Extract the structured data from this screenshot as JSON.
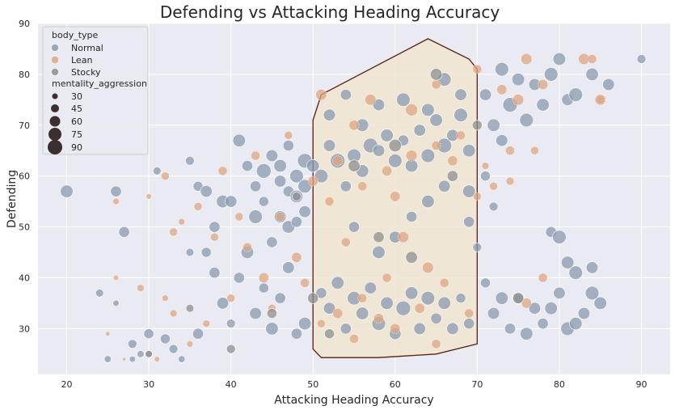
{
  "chart_data": {
    "type": "scatter",
    "title": "Defending vs Attacking Heading Accuracy",
    "xlabel": "Attacking Heading Accuracy",
    "ylabel": "Defending",
    "xlim": [
      16.5,
      93.5
    ],
    "ylim": [
      21,
      90
    ],
    "xticks": [
      "20",
      "30",
      "40",
      "50",
      "60",
      "70",
      "80",
      "90"
    ],
    "yticks": [
      "30",
      "40",
      "50",
      "60",
      "70",
      "80",
      "90"
    ],
    "grid": true,
    "legend_position": "top-left",
    "legend": {
      "hue_title": "body_type",
      "hue_entries": [
        {
          "label": "Normal",
          "color": "#8a9bb0"
        },
        {
          "label": "Lean",
          "color": "#dea680"
        },
        {
          "label": "Stocky",
          "color": "#8f8f8f"
        }
      ],
      "size_title": "mentality_aggression",
      "size_entries": [
        "30",
        "45",
        "60",
        "75",
        "90"
      ]
    },
    "colors": {
      "background": "#eaeaf2",
      "grid": "#ffffff",
      "hull_fill": "#f1e5d0",
      "hull_stroke": "#5a1e12"
    },
    "hull": [
      [
        50,
        71
      ],
      [
        51,
        76
      ],
      [
        64,
        87
      ],
      [
        69,
        83
      ],
      [
        70,
        81
      ],
      [
        70,
        27
      ],
      [
        65,
        25
      ],
      [
        58,
        24.3
      ],
      [
        51,
        24.3
      ],
      [
        50,
        26
      ]
    ],
    "series": [
      {
        "name": "Normal",
        "points": [
          [
            20,
            57,
            80
          ],
          [
            24,
            37,
            55
          ],
          [
            26,
            57,
            70
          ],
          [
            26,
            35,
            45
          ],
          [
            27,
            49,
            70
          ],
          [
            25,
            24,
            50
          ],
          [
            28,
            27,
            60
          ],
          [
            28,
            24,
            45
          ],
          [
            29,
            25,
            50
          ],
          [
            30,
            29,
            65
          ],
          [
            30,
            25,
            55
          ],
          [
            31,
            61,
            55
          ],
          [
            32,
            28,
            65
          ],
          [
            33,
            26,
            60
          ],
          [
            34,
            24,
            50
          ],
          [
            35,
            63,
            60
          ],
          [
            35,
            45,
            55
          ],
          [
            36,
            58,
            65
          ],
          [
            36,
            29,
            70
          ],
          [
            37,
            57,
            75
          ],
          [
            38,
            50,
            70
          ],
          [
            39,
            55,
            80
          ],
          [
            40,
            55,
            75
          ],
          [
            41,
            67,
            80
          ],
          [
            42,
            62,
            70
          ],
          [
            43,
            52,
            85
          ],
          [
            44,
            61,
            90
          ],
          [
            45,
            64,
            75
          ],
          [
            46,
            62,
            80
          ],
          [
            47,
            66,
            70
          ],
          [
            48,
            60,
            85
          ],
          [
            49,
            63,
            90
          ],
          [
            37,
            45,
            65
          ],
          [
            38,
            41,
            70
          ],
          [
            39,
            35,
            75
          ],
          [
            40,
            31,
            60
          ],
          [
            41,
            40,
            70
          ],
          [
            42,
            45,
            80
          ],
          [
            43,
            33,
            75
          ],
          [
            44,
            38,
            65
          ],
          [
            45,
            30,
            80
          ],
          [
            46,
            36,
            70
          ],
          [
            47,
            42,
            75
          ],
          [
            48,
            29,
            70
          ],
          [
            49,
            31,
            80
          ],
          [
            43,
            58,
            70
          ],
          [
            44,
            55,
            65
          ],
          [
            46,
            59,
            75
          ],
          [
            47,
            57,
            70
          ],
          [
            48,
            56,
            80
          ],
          [
            49,
            58,
            85
          ],
          [
            45,
            47,
            70
          ],
          [
            46,
            52,
            75
          ],
          [
            47,
            50,
            80
          ],
          [
            48,
            51,
            70
          ],
          [
            49,
            53,
            75
          ],
          [
            50,
            62,
            80
          ],
          [
            51,
            60,
            85
          ],
          [
            52,
            66,
            75
          ],
          [
            53,
            63,
            90
          ],
          [
            54,
            58,
            70
          ],
          [
            55,
            64,
            85
          ],
          [
            56,
            61,
            80
          ],
          [
            57,
            66,
            90
          ],
          [
            58,
            65,
            75
          ],
          [
            59,
            68,
            80
          ],
          [
            60,
            63,
            85
          ],
          [
            61,
            67,
            70
          ],
          [
            62,
            62,
            80
          ],
          [
            63,
            69,
            75
          ],
          [
            64,
            64,
            85
          ],
          [
            65,
            71,
            80
          ],
          [
            66,
            66,
            90
          ],
          [
            67,
            68,
            75
          ],
          [
            68,
            72,
            85
          ],
          [
            69,
            65,
            80
          ],
          [
            52,
            72,
            75
          ],
          [
            54,
            76,
            70
          ],
          [
            56,
            70,
            80
          ],
          [
            58,
            74,
            75
          ],
          [
            61,
            75,
            85
          ],
          [
            64,
            73,
            80
          ],
          [
            66,
            79,
            85
          ],
          [
            68,
            76,
            75
          ],
          [
            51,
            37,
            70
          ],
          [
            52,
            34,
            75
          ],
          [
            53,
            39,
            80
          ],
          [
            54,
            30,
            70
          ],
          [
            55,
            36,
            85
          ],
          [
            56,
            33,
            80
          ],
          [
            57,
            38,
            75
          ],
          [
            58,
            31,
            85
          ],
          [
            59,
            35,
            80
          ],
          [
            60,
            29,
            75
          ],
          [
            61,
            34,
            90
          ],
          [
            62,
            37,
            80
          ],
          [
            63,
            30,
            75
          ],
          [
            64,
            36,
            85
          ],
          [
            65,
            32,
            70
          ],
          [
            66,
            35,
            80
          ],
          [
            67,
            30,
            75
          ],
          [
            68,
            36,
            65
          ],
          [
            69,
            31,
            70
          ],
          [
            55,
            50,
            70
          ],
          [
            58,
            45,
            80
          ],
          [
            60,
            48,
            75
          ],
          [
            62,
            52,
            70
          ],
          [
            64,
            55,
            80
          ],
          [
            66,
            58,
            75
          ],
          [
            69,
            51,
            70
          ],
          [
            69,
            57,
            80
          ],
          [
            71,
            76,
            75
          ],
          [
            72,
            70,
            80
          ],
          [
            73,
            81,
            85
          ],
          [
            73,
            67,
            75
          ],
          [
            74,
            74,
            90
          ],
          [
            75,
            79,
            80
          ],
          [
            76,
            71,
            85
          ],
          [
            77,
            78,
            75
          ],
          [
            78,
            74,
            80
          ],
          [
            79,
            80,
            85
          ],
          [
            80,
            83,
            80
          ],
          [
            81,
            75,
            75
          ],
          [
            82,
            76,
            85
          ],
          [
            84,
            80,
            80
          ],
          [
            86,
            78,
            75
          ],
          [
            90,
            83,
            60
          ],
          [
            71,
            39,
            65
          ],
          [
            72,
            33,
            75
          ],
          [
            73,
            36,
            80
          ],
          [
            74,
            30,
            70
          ],
          [
            75,
            36,
            75
          ],
          [
            76,
            29,
            80
          ],
          [
            77,
            34,
            75
          ],
          [
            78,
            31,
            70
          ],
          [
            79,
            34,
            80
          ],
          [
            80,
            37,
            75
          ],
          [
            81,
            30,
            85
          ],
          [
            82,
            31,
            80
          ],
          [
            83,
            33,
            75
          ],
          [
            84,
            37,
            85
          ],
          [
            85,
            35,
            80
          ],
          [
            79,
            49,
            70
          ],
          [
            80,
            48,
            85
          ],
          [
            81,
            43,
            80
          ],
          [
            82,
            41,
            85
          ],
          [
            84,
            42,
            75
          ],
          [
            70,
            46,
            60
          ],
          [
            71,
            60,
            65
          ],
          [
            72,
            54,
            60
          ]
        ]
      },
      {
        "name": "Lean",
        "points": [
          [
            25,
            29,
            35
          ],
          [
            26,
            55,
            45
          ],
          [
            26,
            40,
            40
          ],
          [
            27,
            24,
            30
          ],
          [
            29,
            38,
            50
          ],
          [
            30,
            56,
            40
          ],
          [
            31,
            24,
            40
          ],
          [
            32,
            60,
            55
          ],
          [
            32,
            36,
            45
          ],
          [
            33,
            49,
            55
          ],
          [
            33,
            33,
            50
          ],
          [
            34,
            51,
            45
          ],
          [
            35,
            27,
            45
          ],
          [
            36,
            54,
            55
          ],
          [
            37,
            31,
            50
          ],
          [
            38,
            48,
            55
          ],
          [
            39,
            61,
            60
          ],
          [
            40,
            36,
            55
          ],
          [
            41,
            52,
            55
          ],
          [
            42,
            46,
            60
          ],
          [
            43,
            64,
            60
          ],
          [
            44,
            40,
            65
          ],
          [
            45,
            34,
            55
          ],
          [
            46,
            52,
            60
          ],
          [
            47,
            68,
            55
          ],
          [
            48,
            44,
            65
          ],
          [
            49,
            39,
            60
          ],
          [
            50,
            59,
            65
          ],
          [
            51,
            76,
            70
          ],
          [
            51,
            31,
            55
          ],
          [
            52,
            55,
            60
          ],
          [
            53,
            33,
            65
          ],
          [
            54,
            47,
            60
          ],
          [
            55,
            70,
            65
          ],
          [
            56,
            36,
            60
          ],
          [
            57,
            75,
            70
          ],
          [
            58,
            32,
            65
          ],
          [
            59,
            40,
            60
          ],
          [
            60,
            56,
            65
          ],
          [
            61,
            48,
            70
          ],
          [
            62,
            73,
            75
          ],
          [
            63,
            34,
            65
          ],
          [
            64,
            42,
            70
          ],
          [
            65,
            78,
            60
          ],
          [
            66,
            39,
            60
          ],
          [
            67,
            63,
            65
          ],
          [
            68,
            68,
            60
          ],
          [
            69,
            33,
            60
          ],
          [
            70,
            81,
            60
          ],
          [
            70,
            56,
            55
          ],
          [
            71,
            62,
            50
          ],
          [
            72,
            58,
            55
          ],
          [
            73,
            77,
            65
          ],
          [
            74,
            65,
            60
          ],
          [
            75,
            75,
            70
          ],
          [
            76,
            83,
            70
          ],
          [
            77,
            65,
            55
          ],
          [
            78,
            78,
            65
          ],
          [
            83,
            83,
            70
          ],
          [
            84,
            83,
            60
          ],
          [
            85,
            75,
            70
          ],
          [
            85,
            75,
            60
          ],
          [
            74,
            59,
            55
          ],
          [
            76,
            35,
            65
          ],
          [
            78,
            40,
            60
          ],
          [
            53,
            63,
            65
          ],
          [
            56,
            58,
            60
          ],
          [
            59,
            61,
            65
          ],
          [
            62,
            64,
            70
          ],
          [
            65,
            66,
            60
          ],
          [
            55,
            28,
            60
          ],
          [
            60,
            30,
            65
          ],
          [
            65,
            27,
            60
          ]
        ]
      },
      {
        "name": "Stocky",
        "points": [
          [
            30,
            25,
            50
          ],
          [
            35,
            34,
            55
          ],
          [
            40,
            26,
            60
          ],
          [
            45,
            33,
            65
          ],
          [
            50,
            36,
            70
          ],
          [
            55,
            62,
            75
          ],
          [
            60,
            66,
            80
          ],
          [
            65,
            80,
            75
          ],
          [
            70,
            70,
            65
          ],
          [
            75,
            36,
            70
          ],
          [
            48,
            56,
            60
          ],
          [
            52,
            29,
            65
          ],
          [
            58,
            48,
            70
          ],
          [
            62,
            44,
            75
          ],
          [
            67,
            60,
            70
          ]
        ]
      }
    ]
  }
}
